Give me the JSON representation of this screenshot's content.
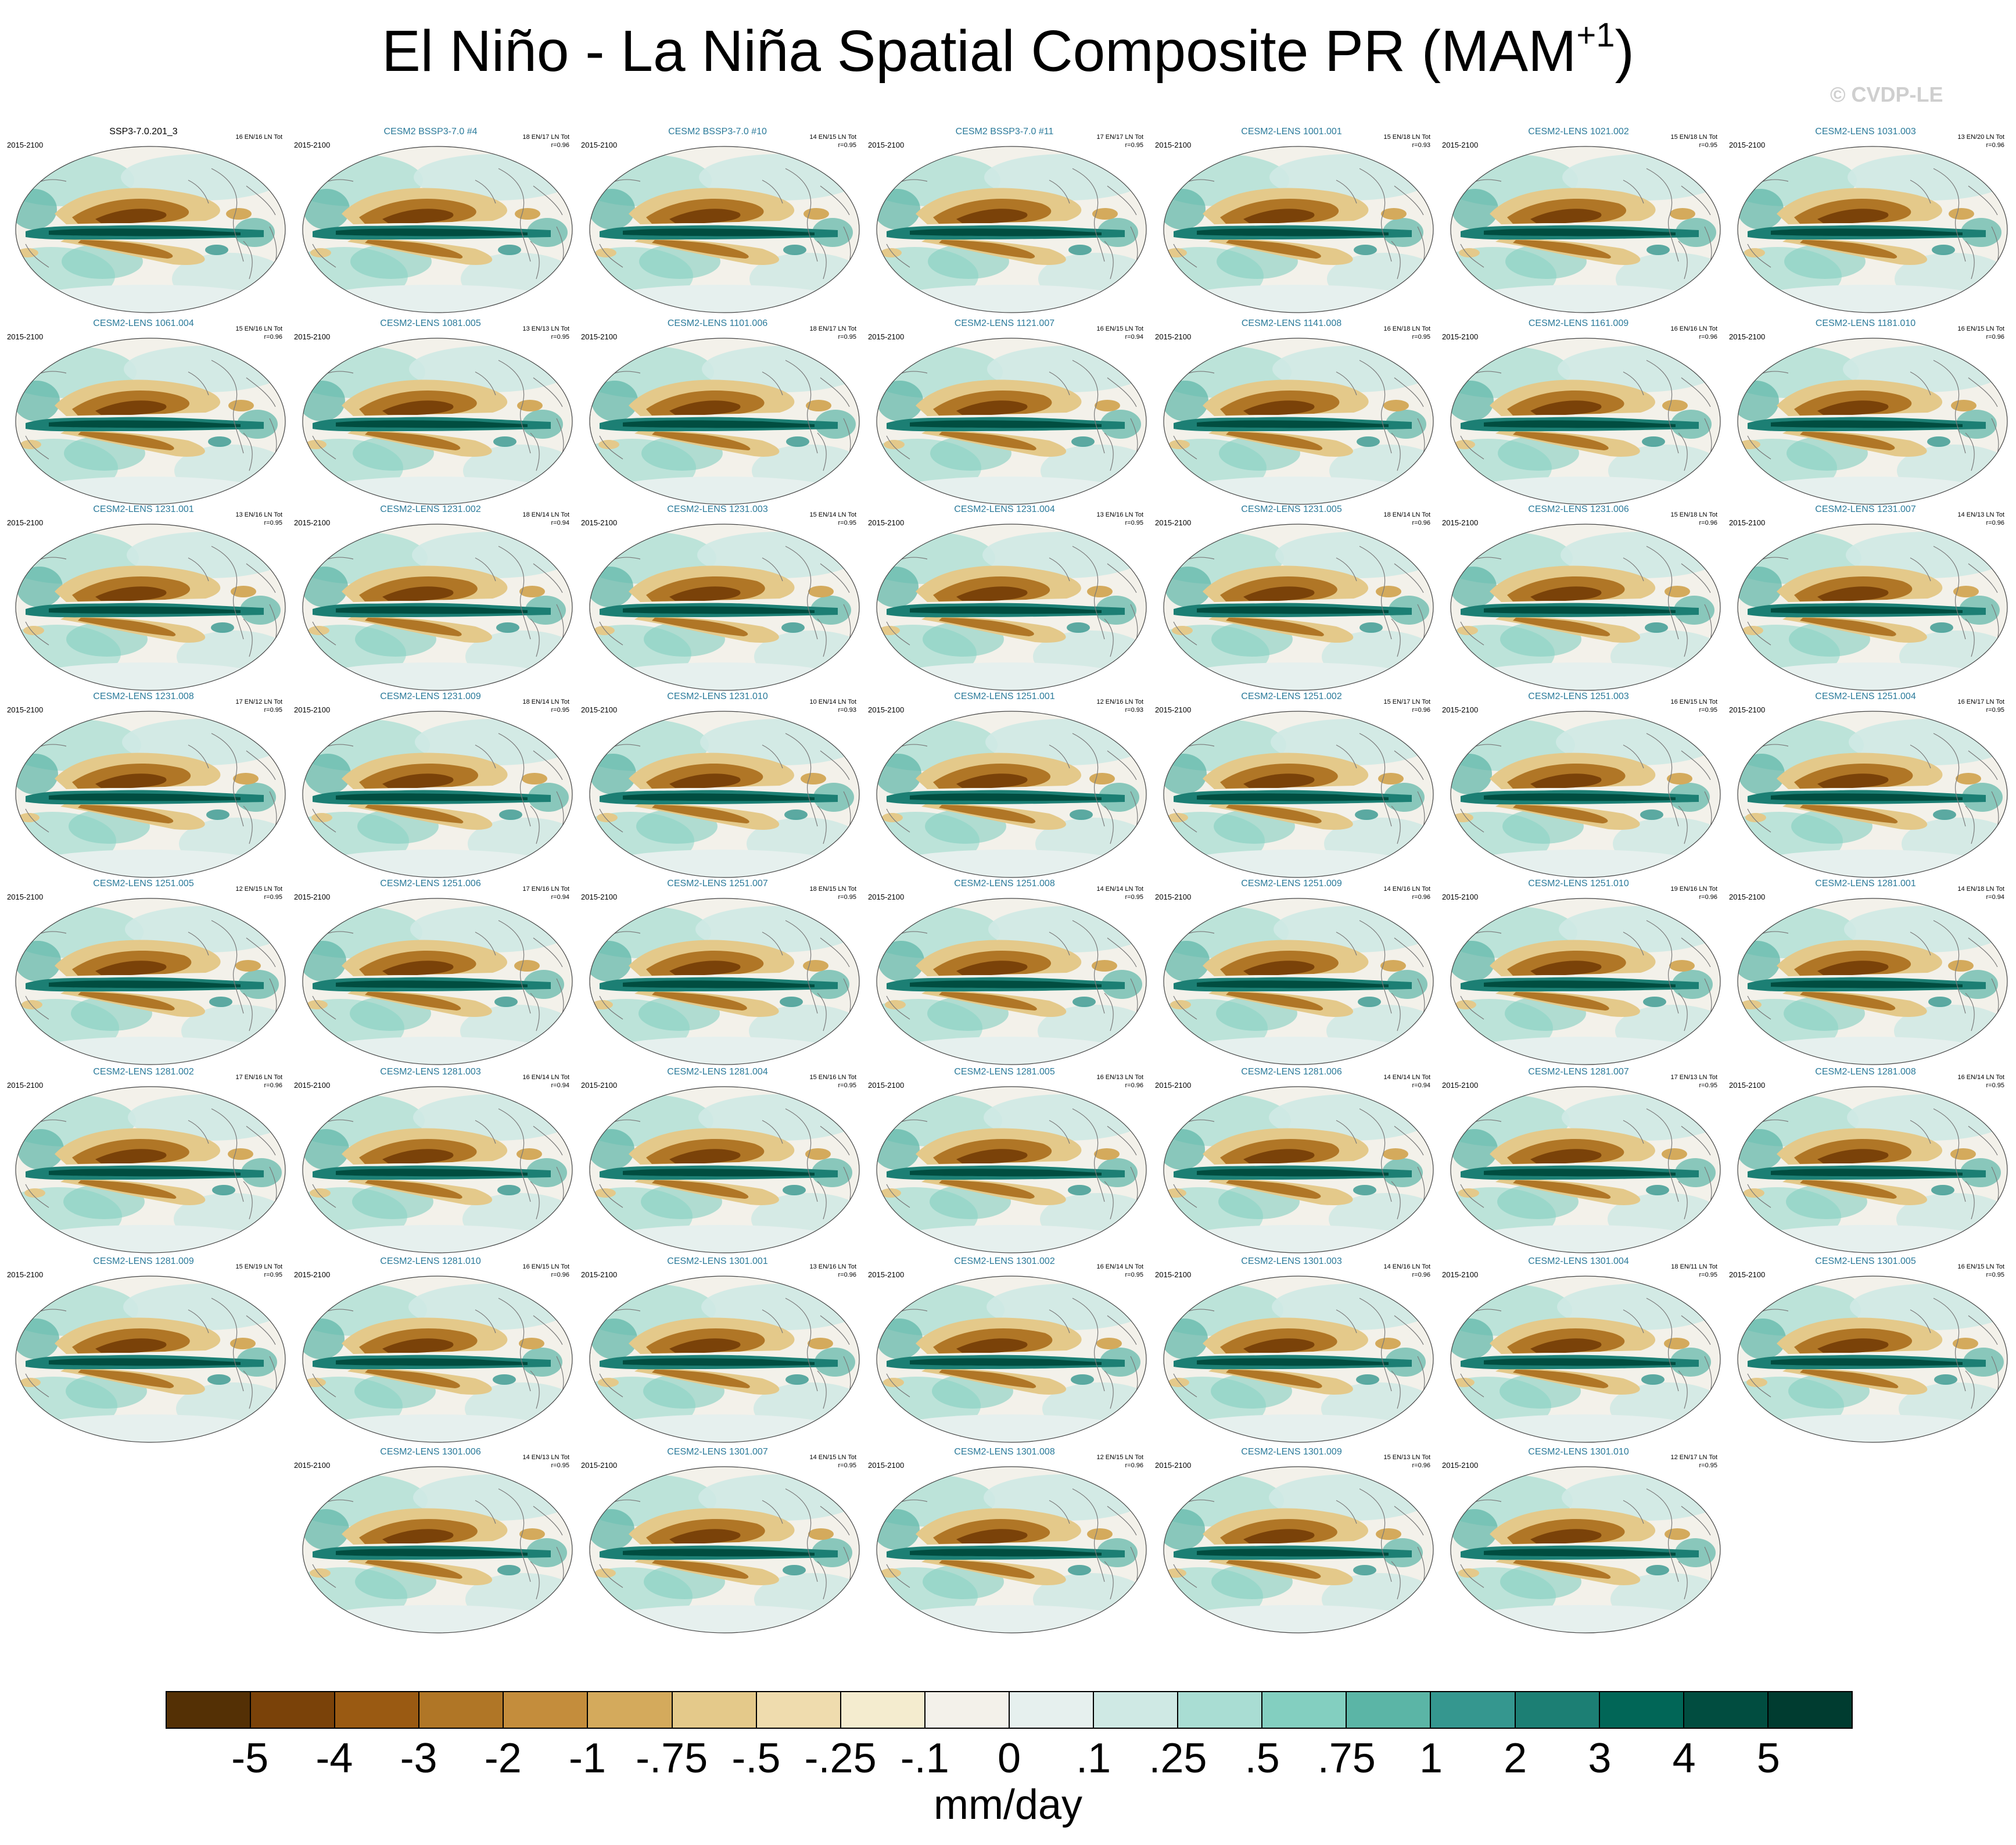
{
  "title": {
    "main": "El Niño - La Niña Spatial Composite PR (MAM",
    "sup": "+1",
    "close": ")"
  },
  "credit": "© CVDP-LE",
  "colorbar": {
    "units": "mm/day",
    "labels": [
      "-5",
      "-4",
      "-3",
      "-2",
      "-1",
      "-.75",
      "-.5",
      "-.25",
      "-.1",
      "0",
      ".1",
      ".25",
      ".5",
      ".75",
      "1",
      "2",
      "3",
      "4",
      "5"
    ],
    "colors": [
      "#543005",
      "#7a4209",
      "#9a5a12",
      "#b07626",
      "#c48d3c",
      "#d4aa5c",
      "#e4c98a",
      "#efdcae",
      "#f4eccf",
      "#f3f1ea",
      "#e6f0ee",
      "#cfe9e4",
      "#a9ddd3",
      "#83cfc0",
      "#5bb5a6",
      "#35978f",
      "#1c7f74",
      "#016657",
      "#014d40",
      "#003c30"
    ]
  },
  "panels": [
    {
      "title": "SSP3-7.0.201_3",
      "years": "2015-2100",
      "counts": "16 EN/16 LN Tot",
      "r": "",
      "obs": true
    },
    {
      "title": "CESM2 BSSP3-7.0 #4",
      "years": "2015-2100",
      "counts": "18 EN/17 LN Tot",
      "r": "r=0.96"
    },
    {
      "title": "CESM2 BSSP3-7.0 #10",
      "years": "2015-2100",
      "counts": "14 EN/15 LN Tot",
      "r": "r=0.95"
    },
    {
      "title": "CESM2 BSSP3-7.0 #11",
      "years": "2015-2100",
      "counts": "17 EN/17 LN Tot",
      "r": "r=0.95"
    },
    {
      "title": "CESM2-LENS 1001.001",
      "years": "2015-2100",
      "counts": "15 EN/18 LN Tot",
      "r": "r=0.93"
    },
    {
      "title": "CESM2-LENS 1021.002",
      "years": "2015-2100",
      "counts": "15 EN/18 LN Tot",
      "r": "r=0.95"
    },
    {
      "title": "CESM2-LENS 1031.003",
      "years": "2015-2100",
      "counts": "13 EN/20 LN Tot",
      "r": "r=0.96"
    },
    {
      "title": "CESM2-LENS 1061.004",
      "years": "2015-2100",
      "counts": "15 EN/16 LN Tot",
      "r": "r=0.96"
    },
    {
      "title": "CESM2-LENS 1081.005",
      "years": "2015-2100",
      "counts": "13 EN/13 LN Tot",
      "r": "r=0.95"
    },
    {
      "title": "CESM2-LENS 1101.006",
      "years": "2015-2100",
      "counts": "18 EN/17 LN Tot",
      "r": "r=0.95"
    },
    {
      "title": "CESM2-LENS 1121.007",
      "years": "2015-2100",
      "counts": "16 EN/15 LN Tot",
      "r": "r=0.94"
    },
    {
      "title": "CESM2-LENS 1141.008",
      "years": "2015-2100",
      "counts": "16 EN/18 LN Tot",
      "r": "r=0.95"
    },
    {
      "title": "CESM2-LENS 1161.009",
      "years": "2015-2100",
      "counts": "16 EN/16 LN Tot",
      "r": "r=0.96"
    },
    {
      "title": "CESM2-LENS 1181.010",
      "years": "2015-2100",
      "counts": "16 EN/15 LN Tot",
      "r": "r=0.96"
    },
    {
      "title": "CESM2-LENS 1231.001",
      "years": "2015-2100",
      "counts": "13 EN/16 LN Tot",
      "r": "r=0.95"
    },
    {
      "title": "CESM2-LENS 1231.002",
      "years": "2015-2100",
      "counts": "18 EN/14 LN Tot",
      "r": "r=0.94"
    },
    {
      "title": "CESM2-LENS 1231.003",
      "years": "2015-2100",
      "counts": "15 EN/14 LN Tot",
      "r": "r=0.95"
    },
    {
      "title": "CESM2-LENS 1231.004",
      "years": "2015-2100",
      "counts": "13 EN/16 LN Tot",
      "r": "r=0.95"
    },
    {
      "title": "CESM2-LENS 1231.005",
      "years": "2015-2100",
      "counts": "18 EN/14 LN Tot",
      "r": "r=0.96"
    },
    {
      "title": "CESM2-LENS 1231.006",
      "years": "2015-2100",
      "counts": "15 EN/18 LN Tot",
      "r": "r=0.96"
    },
    {
      "title": "CESM2-LENS 1231.007",
      "years": "2015-2100",
      "counts": "14 EN/13 LN Tot",
      "r": "r=0.96"
    },
    {
      "title": "CESM2-LENS 1231.008",
      "years": "2015-2100",
      "counts": "17 EN/12 LN Tot",
      "r": "r=0.95"
    },
    {
      "title": "CESM2-LENS 1231.009",
      "years": "2015-2100",
      "counts": "18 EN/14 LN Tot",
      "r": "r=0.95"
    },
    {
      "title": "CESM2-LENS 1231.010",
      "years": "2015-2100",
      "counts": "10 EN/14 LN Tot",
      "r": "r=0.93"
    },
    {
      "title": "CESM2-LENS 1251.001",
      "years": "2015-2100",
      "counts": "12 EN/16 LN Tot",
      "r": "r=0.93"
    },
    {
      "title": "CESM2-LENS 1251.002",
      "years": "2015-2100",
      "counts": "15 EN/17 LN Tot",
      "r": "r=0.96"
    },
    {
      "title": "CESM2-LENS 1251.003",
      "years": "2015-2100",
      "counts": "16 EN/15 LN Tot",
      "r": "r=0.95"
    },
    {
      "title": "CESM2-LENS 1251.004",
      "years": "2015-2100",
      "counts": "16 EN/17 LN Tot",
      "r": "r=0.95"
    },
    {
      "title": "CESM2-LENS 1251.005",
      "years": "2015-2100",
      "counts": "12 EN/15 LN Tot",
      "r": "r=0.95"
    },
    {
      "title": "CESM2-LENS 1251.006",
      "years": "2015-2100",
      "counts": "17 EN/16 LN Tot",
      "r": "r=0.94"
    },
    {
      "title": "CESM2-LENS 1251.007",
      "years": "2015-2100",
      "counts": "18 EN/15 LN Tot",
      "r": "r=0.95"
    },
    {
      "title": "CESM2-LENS 1251.008",
      "years": "2015-2100",
      "counts": "14 EN/14 LN Tot",
      "r": "r=0.95"
    },
    {
      "title": "CESM2-LENS 1251.009",
      "years": "2015-2100",
      "counts": "14 EN/16 LN Tot",
      "r": "r=0.96"
    },
    {
      "title": "CESM2-LENS 1251.010",
      "years": "2015-2100",
      "counts": "19 EN/16 LN Tot",
      "r": "r=0.96"
    },
    {
      "title": "CESM2-LENS 1281.001",
      "years": "2015-2100",
      "counts": "14 EN/18 LN Tot",
      "r": "r=0.94"
    },
    {
      "title": "CESM2-LENS 1281.002",
      "years": "2015-2100",
      "counts": "17 EN/16 LN Tot",
      "r": "r=0.96"
    },
    {
      "title": "CESM2-LENS 1281.003",
      "years": "2015-2100",
      "counts": "16 EN/14 LN Tot",
      "r": "r=0.94"
    },
    {
      "title": "CESM2-LENS 1281.004",
      "years": "2015-2100",
      "counts": "15 EN/16 LN Tot",
      "r": "r=0.95"
    },
    {
      "title": "CESM2-LENS 1281.005",
      "years": "2015-2100",
      "counts": "16 EN/13 LN Tot",
      "r": "r=0.96"
    },
    {
      "title": "CESM2-LENS 1281.006",
      "years": "2015-2100",
      "counts": "14 EN/14 LN Tot",
      "r": "r=0.94"
    },
    {
      "title": "CESM2-LENS 1281.007",
      "years": "2015-2100",
      "counts": "17 EN/13 LN Tot",
      "r": "r=0.95"
    },
    {
      "title": "CESM2-LENS 1281.008",
      "years": "2015-2100",
      "counts": "16 EN/14 LN Tot",
      "r": "r=0.95"
    },
    {
      "title": "CESM2-LENS 1281.009",
      "years": "2015-2100",
      "counts": "15 EN/19 LN Tot",
      "r": "r=0.95"
    },
    {
      "title": "CESM2-LENS 1281.010",
      "years": "2015-2100",
      "counts": "16 EN/15 LN Tot",
      "r": "r=0.96"
    },
    {
      "title": "CESM2-LENS 1301.001",
      "years": "2015-2100",
      "counts": "13 EN/16 LN Tot",
      "r": "r=0.96"
    },
    {
      "title": "CESM2-LENS 1301.002",
      "years": "2015-2100",
      "counts": "16 EN/14 LN Tot",
      "r": "r=0.95"
    },
    {
      "title": "CESM2-LENS 1301.003",
      "years": "2015-2100",
      "counts": "14 EN/16 LN Tot",
      "r": "r=0.96"
    },
    {
      "title": "CESM2-LENS 1301.004",
      "years": "2015-2100",
      "counts": "18 EN/11 LN Tot",
      "r": "r=0.95"
    },
    {
      "title": "CESM2-LENS 1301.005",
      "years": "2015-2100",
      "counts": "16 EN/15 LN Tot",
      "r": "r=0.95"
    },
    {
      "title": "CESM2-LENS 1301.006",
      "years": "2015-2100",
      "counts": "14 EN/13 LN Tot",
      "r": "r=0.95"
    },
    {
      "title": "CESM2-LENS 1301.007",
      "years": "2015-2100",
      "counts": "14 EN/15 LN Tot",
      "r": "r=0.95"
    },
    {
      "title": "CESM2-LENS 1301.008",
      "years": "2015-2100",
      "counts": "12 EN/15 LN Tot",
      "r": "r=0.96"
    },
    {
      "title": "CESM2-LENS 1301.009",
      "years": "2015-2100",
      "counts": "15 EN/13 LN Tot",
      "r": "r=0.96"
    },
    {
      "title": "CESM2-LENS 1301.010",
      "years": "2015-2100",
      "counts": "12 EN/17 LN Tot",
      "r": "r=0.95"
    }
  ]
}
